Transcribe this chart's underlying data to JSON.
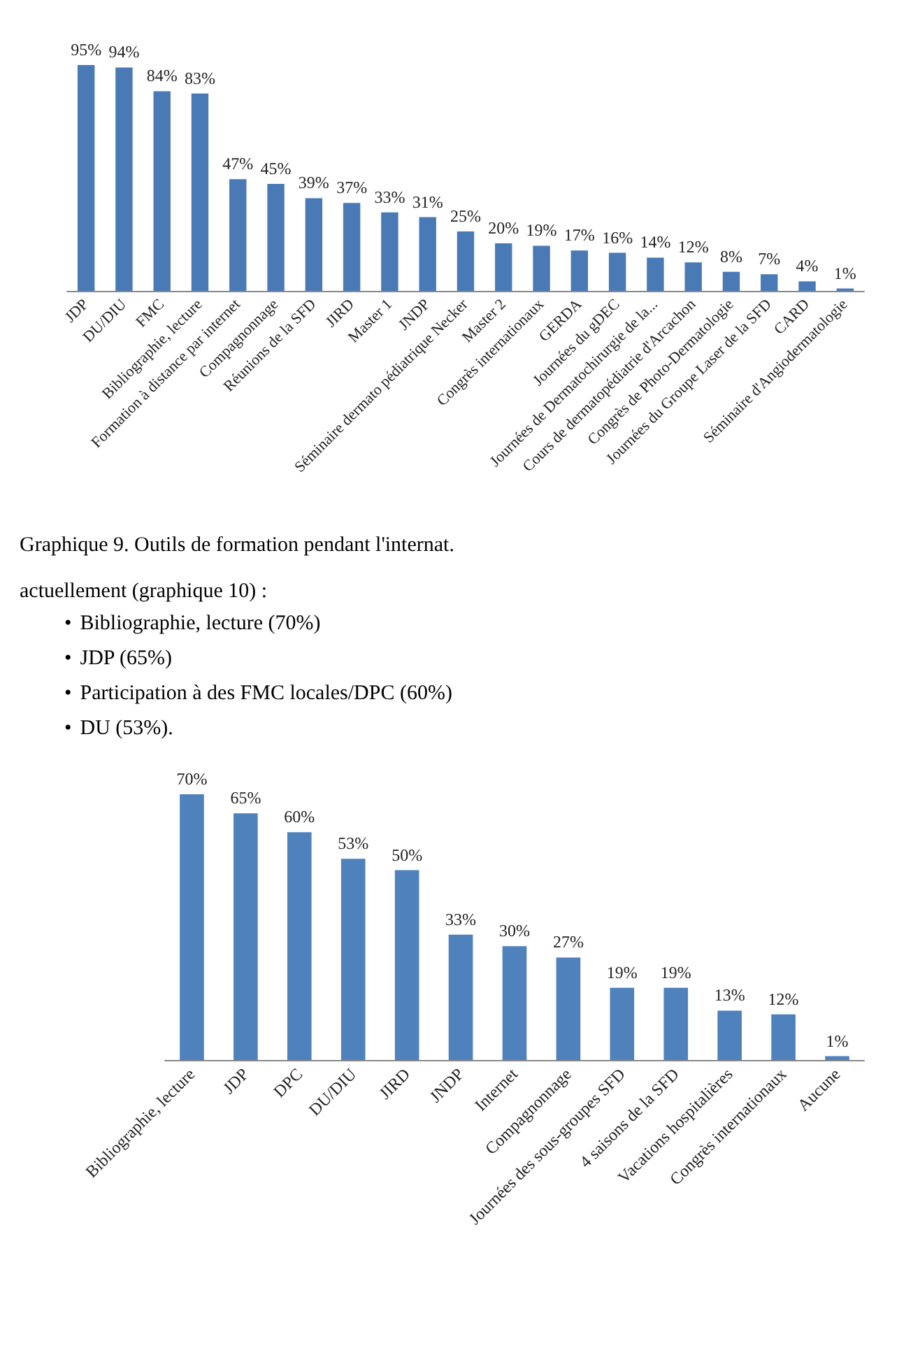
{
  "chart_data": [
    {
      "type": "bar",
      "categories": [
        "JDP",
        "DU/DIU",
        "FMC",
        "Bibliographie, lecture",
        "Formation à distance par internet",
        "Compagnonnage",
        "Réunions de la SFD",
        "JIRD",
        "Master 1",
        "JNDP",
        "Séminaire dermato pédiatrique Necker",
        "Master 2",
        "Congrès internationaux",
        "GERDA",
        "Journées du gDEC",
        "Journées de Dermatochirurgie de la...",
        "Cours de dermatopédiatrie d'Arcachon",
        "Congrès de Photo-Dermatologie",
        "Journées du Groupe Laser de la SFD",
        "CARD",
        "Séminaire d'Angiodermatologie"
      ],
      "values": [
        95,
        94,
        84,
        83,
        47,
        45,
        39,
        37,
        33,
        31,
        25,
        20,
        19,
        17,
        16,
        14,
        12,
        8,
        7,
        4,
        1
      ],
      "value_labels": [
        "95%",
        "94%",
        "84%",
        "83%",
        "47%",
        "45%",
        "39%",
        "37%",
        "33%",
        "31%",
        "25%",
        "20%",
        "19%",
        "17%",
        "16%",
        "14%",
        "12%",
        "8%",
        "7%",
        "4%",
        "1%"
      ],
      "color": "#4a7ab5",
      "annotations": [
        "Graphique 9. Outils de formation pendant l'internat."
      ]
    },
    {
      "type": "bar",
      "categories": [
        "Bibliographie, lecture",
        "JDP",
        "DPC",
        "DU/DIU",
        "JIRD",
        "JNDP",
        "Internet",
        "Compagnonnage",
        "Journées des sous-groupes SFD",
        "4 saisons de la SFD",
        "Vacations hospitalières",
        "Congrès internationaux",
        "Aucune"
      ],
      "values": [
        70,
        65,
        60,
        53,
        50,
        33,
        30,
        27,
        19,
        19,
        13,
        12,
        1
      ],
      "value_labels": [
        "70%",
        "65%",
        "60%",
        "53%",
        "50%",
        "33%",
        "30%",
        "27%",
        "19%",
        "19%",
        "13%",
        "12%",
        "1%"
      ],
      "color": "#4f81bd",
      "annotations": [
        "actuellement (graphique 10) :",
        "•\tBibliographie, lecture (70%)",
        "•\tJDP (65%)",
        "•\tParticipation à des FMC locales/DPC (60%)",
        "•\tDU (53%)."
      ]
    }
  ]
}
